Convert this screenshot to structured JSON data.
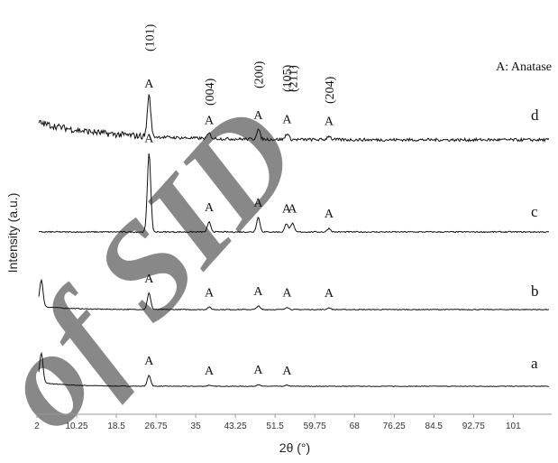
{
  "chart_data": {
    "type": "line",
    "xlabel": "2θ (°)",
    "ylabel": "Intensity (a.u.)",
    "xlim": [
      2,
      109
    ],
    "x_ticks": [
      "2",
      "10.25",
      "18.5",
      "26.75",
      "35",
      "43.25",
      "51.5",
      "59.75",
      "68",
      "76.25",
      "84.5",
      "92.75",
      "101"
    ],
    "legend_text": "A: Anatase",
    "legend_position": "top-right",
    "grid": false,
    "hkl_labels": [
      {
        "label": "(101)",
        "x": 25.3
      },
      {
        "label": "(004)",
        "x": 37.8
      },
      {
        "label": "(200)",
        "x": 48.0
      },
      {
        "label": "(105)",
        "x": 53.9
      },
      {
        "label": "(211)",
        "x": 55.1
      },
      {
        "label": "(204)",
        "x": 62.7
      }
    ],
    "series": [
      {
        "name": "a",
        "peak_marker": "A",
        "peaks": [
          {
            "x": 25.3,
            "height": 0.2
          },
          {
            "x": 37.8,
            "height": 0.02
          },
          {
            "x": 48.0,
            "height": 0.03
          },
          {
            "x": 54.0,
            "height": 0.02
          }
        ],
        "low_angle_peak": 0.55,
        "noise": 0.012
      },
      {
        "name": "b",
        "peak_marker": "A",
        "peaks": [
          {
            "x": 25.3,
            "height": 0.28
          },
          {
            "x": 37.8,
            "height": 0.04
          },
          {
            "x": 48.0,
            "height": 0.06
          },
          {
            "x": 54.0,
            "height": 0.04
          },
          {
            "x": 62.7,
            "height": 0.03
          }
        ],
        "low_angle_peak": 0.45,
        "noise": 0.014
      },
      {
        "name": "c",
        "peak_marker": "A",
        "peaks": [
          {
            "x": 25.3,
            "height": 0.65
          },
          {
            "x": 37.8,
            "height": 0.08
          },
          {
            "x": 48.0,
            "height": 0.12
          },
          {
            "x": 53.9,
            "height": 0.07
          },
          {
            "x": 55.1,
            "height": 0.07
          },
          {
            "x": 62.7,
            "height": 0.03
          }
        ],
        "low_angle_peak": 0.0,
        "noise": 0.01
      },
      {
        "name": "d",
        "peak_marker": "A",
        "peaks": [
          {
            "x": 25.3,
            "height": 0.42
          },
          {
            "x": 37.8,
            "height": 0.05
          },
          {
            "x": 48.0,
            "height": 0.1
          },
          {
            "x": 54.0,
            "height": 0.06
          },
          {
            "x": 62.7,
            "height": 0.04
          }
        ],
        "low_angle_peak": 0.0,
        "noise": 0.03
      }
    ]
  },
  "watermark": "of SID",
  "colors": {
    "line": "#111111",
    "axis": "#9a9a9a",
    "watermark": "#c9c9c9"
  }
}
